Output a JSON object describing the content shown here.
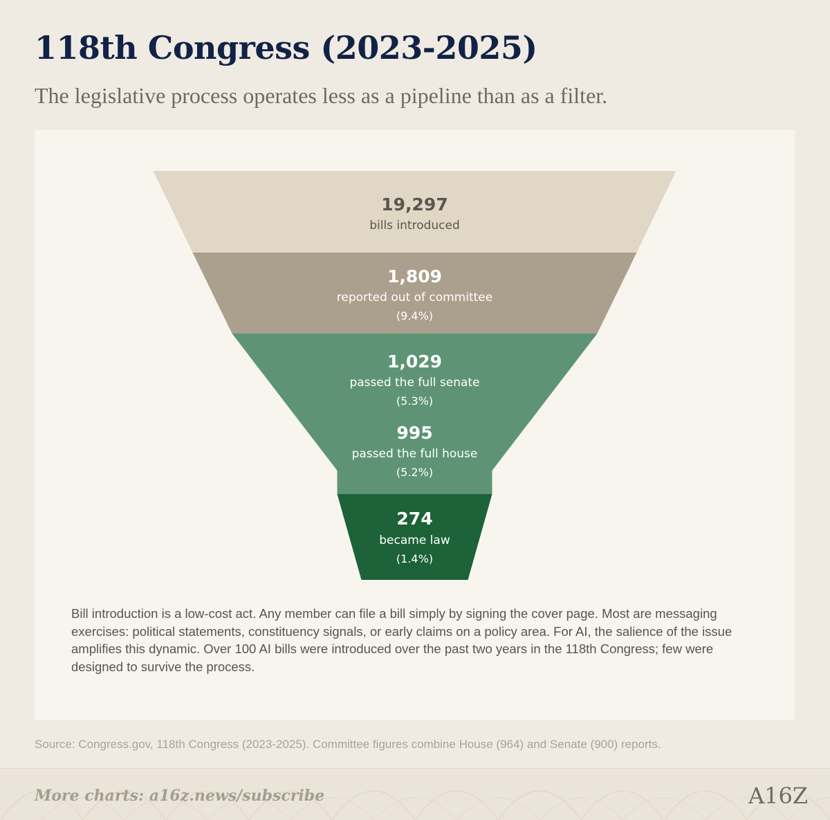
{
  "title": "118th Congress (2023-2025)",
  "subtitle": "The legislative process operates less as a pipeline than as a filter.",
  "chart_data": {
    "type": "funnel",
    "stages": [
      {
        "value": 19297,
        "value_label": "19,297",
        "label": "bills introduced",
        "pct": "",
        "color": "#e0d7c6",
        "text_color": "#5a5650"
      },
      {
        "value": 1809,
        "value_label": "1,809",
        "label": "reported out of committee",
        "pct": "(9.4%)",
        "color": "#ab9f8d",
        "text_color": "#ffffff"
      },
      {
        "value": 1029,
        "value_label": "1,029",
        "label": "passed the full senate",
        "pct": "(5.3%)",
        "color": "#5e9475",
        "text_color": "#ffffff"
      },
      {
        "value": 995,
        "value_label": "995",
        "label": "passed the full house",
        "pct": "(5.2%)",
        "color": "#5e9475",
        "text_color": "#ffffff"
      },
      {
        "value": 274,
        "value_label": "274",
        "label": "became law",
        "pct": "(1.4%)",
        "color": "#1d6239",
        "text_color": "#ffffff"
      }
    ]
  },
  "note": "Bill introduction is a low-cost act. Any member can file a bill simply by signing the cover page. Most are messaging exercises: political statements, constituency signals, or early claims on a policy area. For AI, the salience of the issue amplifies this dynamic. Over 100 AI bills were introduced over the past two years in the 118th Congress; few were designed to survive the process.",
  "source": "Source: Congress.gov, 118th Congress (2023-2025). Committee figures combine House (964) and Senate (900) reports.",
  "footer": {
    "more_charts": "More charts: a16z.news/subscribe",
    "logo": "A16Z"
  }
}
